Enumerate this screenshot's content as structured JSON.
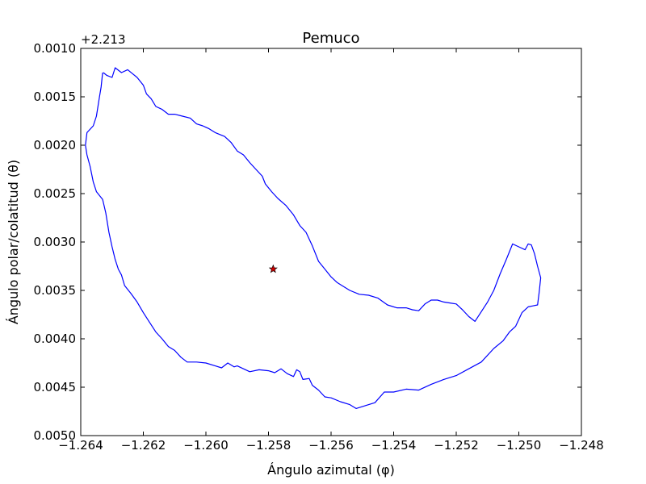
{
  "chart_data": {
    "type": "line",
    "title": "Pemuco",
    "xlabel": "Ángulo azimutal (φ)",
    "ylabel": "Ángulo polar/colatitud (θ)",
    "y_offset_label": "+2.213",
    "xlim": [
      -1.264,
      -1.248
    ],
    "ylim_offset": [
      0.001,
      0.005
    ],
    "y_inverted": true,
    "grid": false,
    "x_ticks": [
      "−1.264",
      "−1.262",
      "−1.260",
      "−1.258",
      "−1.256",
      "−1.254",
      "−1.252",
      "−1.250",
      "−1.248"
    ],
    "x_tick_values": [
      -1.264,
      -1.262,
      -1.26,
      -1.258,
      -1.256,
      -1.254,
      -1.252,
      -1.25,
      -1.248
    ],
    "y_ticks": [
      "0.0010",
      "0.0015",
      "0.0020",
      "0.0025",
      "0.0030",
      "0.0035",
      "0.0040",
      "0.0045",
      "0.0050"
    ],
    "y_tick_values": [
      0.001,
      0.0015,
      0.002,
      0.0025,
      0.003,
      0.0035,
      0.004,
      0.0045,
      0.005
    ],
    "series": [
      {
        "color": "#0000ff",
        "points": [
          [
            -1.26328,
            0.00125
          ],
          [
            -1.26316,
            0.00128
          ],
          [
            -1.263,
            0.0013
          ],
          [
            -1.2629,
            0.0012
          ],
          [
            -1.2627,
            0.00125
          ],
          [
            -1.2625,
            0.00122
          ],
          [
            -1.26235,
            0.00126
          ],
          [
            -1.2622,
            0.0013
          ],
          [
            -1.262,
            0.00138
          ],
          [
            -1.2619,
            0.00147
          ],
          [
            -1.26175,
            0.00152
          ],
          [
            -1.2616,
            0.0016
          ],
          [
            -1.2614,
            0.00163
          ],
          [
            -1.2612,
            0.00168
          ],
          [
            -1.261,
            0.00168
          ],
          [
            -1.26075,
            0.0017
          ],
          [
            -1.2605,
            0.00172
          ],
          [
            -1.2603,
            0.00178
          ],
          [
            -1.2601,
            0.0018
          ],
          [
            -1.2599,
            0.00183
          ],
          [
            -1.2597,
            0.00187
          ],
          [
            -1.2594,
            0.00191
          ],
          [
            -1.2592,
            0.00197
          ],
          [
            -1.259,
            0.00206
          ],
          [
            -1.2588,
            0.0021
          ],
          [
            -1.2586,
            0.00218
          ],
          [
            -1.2584,
            0.00225
          ],
          [
            -1.2582,
            0.00232
          ],
          [
            -1.2581,
            0.0024
          ],
          [
            -1.2579,
            0.00248
          ],
          [
            -1.2577,
            0.00255
          ],
          [
            -1.25745,
            0.00262
          ],
          [
            -1.2572,
            0.00272
          ],
          [
            -1.257,
            0.00283
          ],
          [
            -1.2568,
            0.0029
          ],
          [
            -1.2566,
            0.00304
          ],
          [
            -1.2564,
            0.0032
          ],
          [
            -1.2562,
            0.00328
          ],
          [
            -1.256,
            0.00336
          ],
          [
            -1.2558,
            0.00342
          ],
          [
            -1.2556,
            0.00346
          ],
          [
            -1.2554,
            0.0035
          ],
          [
            -1.2551,
            0.00354
          ],
          [
            -1.2548,
            0.00355
          ],
          [
            -1.2545,
            0.00358
          ],
          [
            -1.2542,
            0.00365
          ],
          [
            -1.2539,
            0.00368
          ],
          [
            -1.2536,
            0.00368
          ],
          [
            -1.2534,
            0.0037
          ],
          [
            -1.2532,
            0.00371
          ],
          [
            -1.253,
            0.00364
          ],
          [
            -1.2528,
            0.0036
          ],
          [
            -1.2526,
            0.0036
          ],
          [
            -1.2524,
            0.00362
          ],
          [
            -1.2522,
            0.00363
          ],
          [
            -1.252,
            0.00364
          ],
          [
            -1.2518,
            0.0037
          ],
          [
            -1.2516,
            0.00377
          ],
          [
            -1.2514,
            0.00382
          ],
          [
            -1.2512,
            0.00372
          ],
          [
            -1.251,
            0.00362
          ],
          [
            -1.2508,
            0.0035
          ],
          [
            -1.2506,
            0.00333
          ],
          [
            -1.2504,
            0.00318
          ],
          [
            -1.2502,
            0.00302
          ],
          [
            -1.25,
            0.00305
          ],
          [
            -1.2498,
            0.00308
          ],
          [
            -1.2497,
            0.00302
          ],
          [
            -1.2496,
            0.00303
          ],
          [
            -1.2495,
            0.00312
          ],
          [
            -1.2494,
            0.00325
          ],
          [
            -1.2493,
            0.00337
          ],
          [
            -1.24935,
            0.00352
          ],
          [
            -1.2494,
            0.00365
          ],
          [
            -1.24955,
            0.00366
          ],
          [
            -1.2497,
            0.00367
          ],
          [
            -1.2499,
            0.00373
          ],
          [
            -1.2501,
            0.00387
          ],
          [
            -1.2503,
            0.00393
          ],
          [
            -1.2505,
            0.00402
          ],
          [
            -1.2508,
            0.0041
          ],
          [
            -1.2512,
            0.00424
          ],
          [
            -1.2516,
            0.00431
          ],
          [
            -1.252,
            0.00438
          ],
          [
            -1.2524,
            0.00442
          ],
          [
            -1.2528,
            0.00447
          ],
          [
            -1.2532,
            0.00453
          ],
          [
            -1.2536,
            0.00452
          ],
          [
            -1.254,
            0.00455
          ],
          [
            -1.2543,
            0.00455
          ],
          [
            -1.2546,
            0.00466
          ],
          [
            -1.2549,
            0.00469
          ],
          [
            -1.2552,
            0.00472
          ],
          [
            -1.2554,
            0.00468
          ],
          [
            -1.2557,
            0.00465
          ],
          [
            -1.256,
            0.00461
          ],
          [
            -1.2562,
            0.0046
          ],
          [
            -1.2564,
            0.00453
          ],
          [
            -1.2566,
            0.00448
          ],
          [
            -1.2567,
            0.00441
          ],
          [
            -1.2569,
            0.00442
          ],
          [
            -1.257,
            0.00434
          ],
          [
            -1.2571,
            0.00432
          ],
          [
            -1.2572,
            0.00439
          ],
          [
            -1.2574,
            0.00436
          ],
          [
            -1.2576,
            0.00431
          ],
          [
            -1.2578,
            0.00435
          ],
          [
            -1.258,
            0.00433
          ],
          [
            -1.2583,
            0.00432
          ],
          [
            -1.2586,
            0.00434
          ],
          [
            -1.2588,
            0.00431
          ],
          [
            -1.259,
            0.00428
          ],
          [
            -1.2591,
            0.00429
          ],
          [
            -1.2593,
            0.00425
          ],
          [
            -1.2595,
            0.0043
          ],
          [
            -1.2597,
            0.00428
          ],
          [
            -1.26,
            0.00425
          ],
          [
            -1.2603,
            0.00424
          ],
          [
            -1.2606,
            0.00424
          ],
          [
            -1.2608,
            0.00419
          ],
          [
            -1.261,
            0.00412
          ],
          [
            -1.2612,
            0.00408
          ],
          [
            -1.2614,
            0.004
          ],
          [
            -1.2616,
            0.00393
          ],
          [
            -1.2618,
            0.00383
          ],
          [
            -1.262,
            0.00373
          ],
          [
            -1.2622,
            0.00362
          ],
          [
            -1.2624,
            0.00353
          ],
          [
            -1.2626,
            0.00345
          ],
          [
            -1.2627,
            0.00334
          ],
          [
            -1.2628,
            0.00328
          ],
          [
            -1.2629,
            0.00318
          ],
          [
            -1.263,
            0.00305
          ],
          [
            -1.2631,
            0.0029
          ],
          [
            -1.2632,
            0.0027
          ],
          [
            -1.2633,
            0.00256
          ],
          [
            -1.2634,
            0.00252
          ],
          [
            -1.2635,
            0.00248
          ],
          [
            -1.2636,
            0.00238
          ],
          [
            -1.2637,
            0.00222
          ],
          [
            -1.2638,
            0.0021
          ],
          [
            -1.26385,
            0.002
          ],
          [
            -1.2638,
            0.00187
          ],
          [
            -1.2636,
            0.0018
          ],
          [
            -1.2635,
            0.0017
          ],
          [
            -1.26345,
            0.0016
          ],
          [
            -1.2634,
            0.0015
          ],
          [
            -1.26335,
            0.0014
          ],
          [
            -1.2633,
            0.00125
          ]
        ]
      }
    ],
    "marker": {
      "x": -1.25785,
      "y": 0.00328,
      "symbol": "star",
      "color": "#cc0000"
    }
  }
}
